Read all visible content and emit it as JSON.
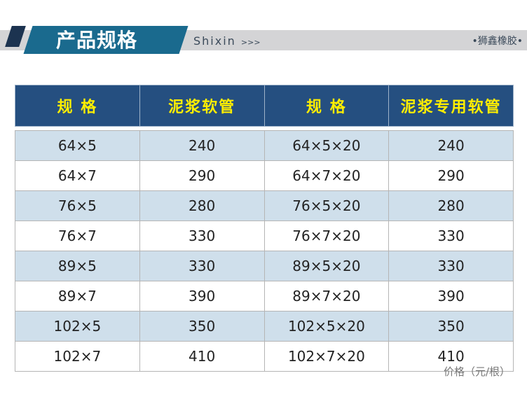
{
  "header": {
    "title": "产品规格",
    "subtitle": "Shixin",
    "subtitle_arrows": ">>>",
    "brand": "•狮鑫橡胶•"
  },
  "table": {
    "columns": [
      "规 格",
      "泥浆软管",
      "规 格",
      "泥浆专用软管"
    ],
    "rows": [
      [
        "64×5",
        "240",
        "64×5×20",
        "240"
      ],
      [
        "64×7",
        "290",
        "64×7×20",
        "290"
      ],
      [
        "76×5",
        "280",
        "76×5×20",
        "280"
      ],
      [
        "76×7",
        "330",
        "76×7×20",
        "330"
      ],
      [
        "89×5",
        "330",
        "89×5×20",
        "330"
      ],
      [
        "89×7",
        "390",
        "89×7×20",
        "390"
      ],
      [
        "102×5",
        "350",
        "102×5×20",
        "350"
      ],
      [
        "102×7",
        "410",
        "102×7×20",
        "410"
      ]
    ]
  },
  "note": "价格（元/根）",
  "colors": {
    "header_bg": "#254f80",
    "header_text": "#ffee00",
    "alt_row": "#cfdfeb",
    "teal": "#1a6a8e"
  }
}
